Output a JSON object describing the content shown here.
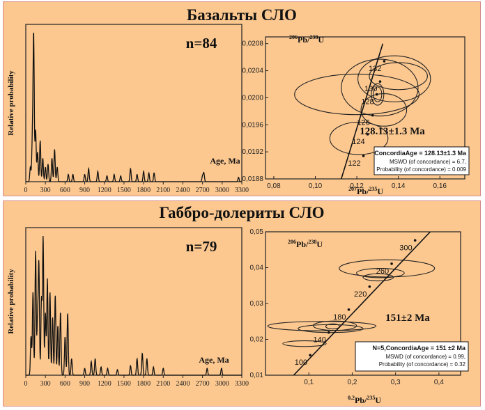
{
  "chart_data": [
    {
      "id": "basalt",
      "title": "Базальты СЛО",
      "hist": {
        "type": "line",
        "ylabel": "Relative probability",
        "xlabel": "Age, Ma",
        "n_label": "n=84",
        "xlim": [
          0,
          3300
        ],
        "xticks": [
          0,
          300,
          600,
          900,
          1200,
          1500,
          1800,
          2100,
          2400,
          2700,
          3000,
          3300
        ],
        "peaks": [
          [
            70,
            0.1
          ],
          [
            100,
            0.28
          ],
          [
            120,
            1.0
          ],
          [
            150,
            0.35
          ],
          [
            180,
            0.2
          ],
          [
            220,
            0.28
          ],
          [
            260,
            0.16
          ],
          [
            300,
            0.1
          ],
          [
            340,
            0.12
          ],
          [
            400,
            0.16
          ],
          [
            440,
            0.22
          ],
          [
            480,
            0.1
          ],
          [
            650,
            0.05
          ],
          [
            720,
            0.05
          ],
          [
            900,
            0.05
          ],
          [
            960,
            0.09
          ],
          [
            1100,
            0.07
          ],
          [
            1240,
            0.04
          ],
          [
            1350,
            0.05
          ],
          [
            1450,
            0.04
          ],
          [
            1600,
            0.09
          ],
          [
            1700,
            0.05
          ],
          [
            1800,
            0.07
          ],
          [
            1880,
            0.06
          ],
          [
            1960,
            0.06
          ],
          [
            2700,
            0.04
          ],
          [
            2720,
            0.06
          ],
          [
            3250,
            0.03
          ]
        ]
      },
      "concordia": {
        "type": "scatter",
        "ylabel_main": "206",
        "ylabel_a": "Pb/",
        "ylabel_b": "238",
        "ylabel_c": "U",
        "xlabel_main": "207",
        "xlabel_a": "Pb/",
        "xlabel_b": "235",
        "xlabel_c": "U",
        "xlim": [
          0.076,
          0.172
        ],
        "ylim": [
          0.0188,
          0.0209
        ],
        "xticks": [
          0.08,
          0.1,
          0.12,
          0.14,
          0.16
        ],
        "xtick_labels": [
          "0,08",
          "0,10",
          "0,12",
          "0,14",
          "0,16"
        ],
        "yticks": [
          0.0188,
          0.0192,
          0.0196,
          0.02,
          0.0204,
          0.0208
        ],
        "ytick_labels": [
          "0,0188",
          "0,0192",
          "0,0196",
          "0,0200",
          "0,0204",
          "0,0208"
        ],
        "curve_points": [
          [
            0.108,
            0.01835
          ],
          [
            0.1325,
            0.0208
          ]
        ],
        "age_marks": [
          {
            "label": "122",
            "x": 0.1232,
            "y": 0.01914
          },
          {
            "label": "124",
            "x": 0.1252,
            "y": 0.01946
          },
          {
            "label": "126",
            "x": 0.1276,
            "y": 0.01974
          },
          {
            "label": "128",
            "x": 0.1296,
            "y": 0.02005
          },
          {
            "label": "130",
            "x": 0.1312,
            "y": 0.02024
          },
          {
            "label": "132",
            "x": 0.1332,
            "y": 0.02054
          }
        ],
        "ellipses": [
          {
            "cx": 0.131,
            "cy": 0.02015,
            "rx": 0.0185,
            "ry": 0.00042
          },
          {
            "cx": 0.138,
            "cy": 0.02028,
            "rx": 0.0175,
            "ry": 0.00034
          },
          {
            "cx": 0.14,
            "cy": 0.02032,
            "rx": 0.014,
            "ry": 0.0002
          },
          {
            "cx": 0.12,
            "cy": 0.02005,
            "rx": 0.03,
            "ry": 0.0003
          },
          {
            "cx": 0.133,
            "cy": 0.01982,
            "rx": 0.011,
            "ry": 0.00024
          },
          {
            "cx": 0.121,
            "cy": 0.0194,
            "rx": 0.014,
            "ry": 0.00024
          },
          {
            "cx": 0.13,
            "cy": 0.02005,
            "rx": 0.003,
            "ry": 0.00016
          },
          {
            "cx": 0.13,
            "cy": 0.02005,
            "rx": 0.002,
            "ry": 0.00011
          }
        ],
        "age_label": "128.13±1.3 Ma",
        "box_title": "ConcordiaAge = 128.13±1.3 Ma",
        "box_line1": "MSWD (of concordance) = 6.7,",
        "box_line2": "Probability (of concordance) = 0.009"
      }
    },
    {
      "id": "gabbro",
      "title": "Габбро-долериты СЛО",
      "hist": {
        "type": "line",
        "ylabel": "Relative probability",
        "xlabel": "Age, Ma",
        "n_label": "n=79",
        "xlim": [
          0,
          3300
        ],
        "xticks": [
          0,
          300,
          600,
          900,
          1200,
          1500,
          1800,
          2100,
          2400,
          2700,
          3000,
          3300
        ],
        "peaks": [
          [
            80,
            0.28
          ],
          [
            110,
            0.6
          ],
          [
            150,
            0.9
          ],
          [
            180,
            0.4
          ],
          [
            200,
            0.8
          ],
          [
            240,
            0.55
          ],
          [
            265,
            1.0
          ],
          [
            300,
            0.45
          ],
          [
            330,
            0.7
          ],
          [
            370,
            0.6
          ],
          [
            410,
            0.42
          ],
          [
            450,
            0.58
          ],
          [
            490,
            0.36
          ],
          [
            530,
            0.46
          ],
          [
            600,
            0.28
          ],
          [
            640,
            0.45
          ],
          [
            700,
            0.12
          ],
          [
            900,
            0.05
          ],
          [
            1000,
            0.1
          ],
          [
            1060,
            0.12
          ],
          [
            1150,
            0.06
          ],
          [
            1250,
            0.05
          ],
          [
            1400,
            0.04
          ],
          [
            1600,
            0.07
          ],
          [
            1700,
            0.12
          ],
          [
            1780,
            0.16
          ],
          [
            1850,
            0.12
          ],
          [
            1950,
            0.06
          ],
          [
            2100,
            0.05
          ],
          [
            2770,
            0.05
          ],
          [
            2990,
            0.05
          ]
        ]
      },
      "concordia": {
        "type": "scatter",
        "ylabel_main": "206",
        "ylabel_a": "Pb/",
        "ylabel_b": "238",
        "ylabel_c": "U",
        "xlabel_main": "0,2",
        "xlabel_a": "Pb/",
        "xlabel_b": "235",
        "xlabel_c": "U",
        "xlim": [
          0.0,
          0.45
        ],
        "ylim": [
          0.01,
          0.05
        ],
        "xticks": [
          0.1,
          0.2,
          0.3,
          0.4
        ],
        "xtick_labels": [
          "0,1",
          "0,2",
          "0,3",
          "0,4"
        ],
        "yticks": [
          0.01,
          0.02,
          0.03,
          0.04,
          0.05
        ],
        "ytick_labels": [
          "0,01",
          "0,02",
          "0,03",
          "0,04",
          "0,05"
        ],
        "curve_points": [
          [
            0.065,
            0.01
          ],
          [
            0.38,
            0.05
          ]
        ],
        "age_marks": [
          {
            "label": "100",
            "x": 0.103,
            "y": 0.0156
          },
          {
            "label": "140",
            "x": 0.146,
            "y": 0.0219
          },
          {
            "label": "180",
            "x": 0.192,
            "y": 0.0283
          },
          {
            "label": "220",
            "x": 0.24,
            "y": 0.0347
          },
          {
            "label": "260",
            "x": 0.291,
            "y": 0.0411
          },
          {
            "label": "300",
            "x": 0.345,
            "y": 0.0476
          }
        ],
        "ellipses": [
          {
            "cx": 0.28,
            "cy": 0.0398,
            "rx": 0.11,
            "ry": 0.0024
          },
          {
            "cx": 0.265,
            "cy": 0.0385,
            "rx": 0.055,
            "ry": 0.0013
          },
          {
            "cx": 0.26,
            "cy": 0.0373,
            "rx": 0.035,
            "ry": 0.001
          },
          {
            "cx": 0.13,
            "cy": 0.0237,
            "rx": 0.125,
            "ry": 0.0013
          },
          {
            "cx": 0.16,
            "cy": 0.0238,
            "rx": 0.05,
            "ry": 0.0013
          },
          {
            "cx": 0.15,
            "cy": 0.023,
            "rx": 0.075,
            "ry": 0.0011
          },
          {
            "cx": 0.155,
            "cy": 0.0236,
            "rx": 0.016,
            "ry": 0.0007
          },
          {
            "cx": 0.09,
            "cy": 0.0188,
            "rx": 0.05,
            "ry": 0.0008
          }
        ],
        "age_label": "151±2 Ma",
        "box_title": "N=5,ConcordiaAge = 151 ±2 Ma",
        "box_line1": "MSWD (of concordance) = 0.99,",
        "box_line2": "Probability (of concordance) = 0.32"
      }
    }
  ]
}
